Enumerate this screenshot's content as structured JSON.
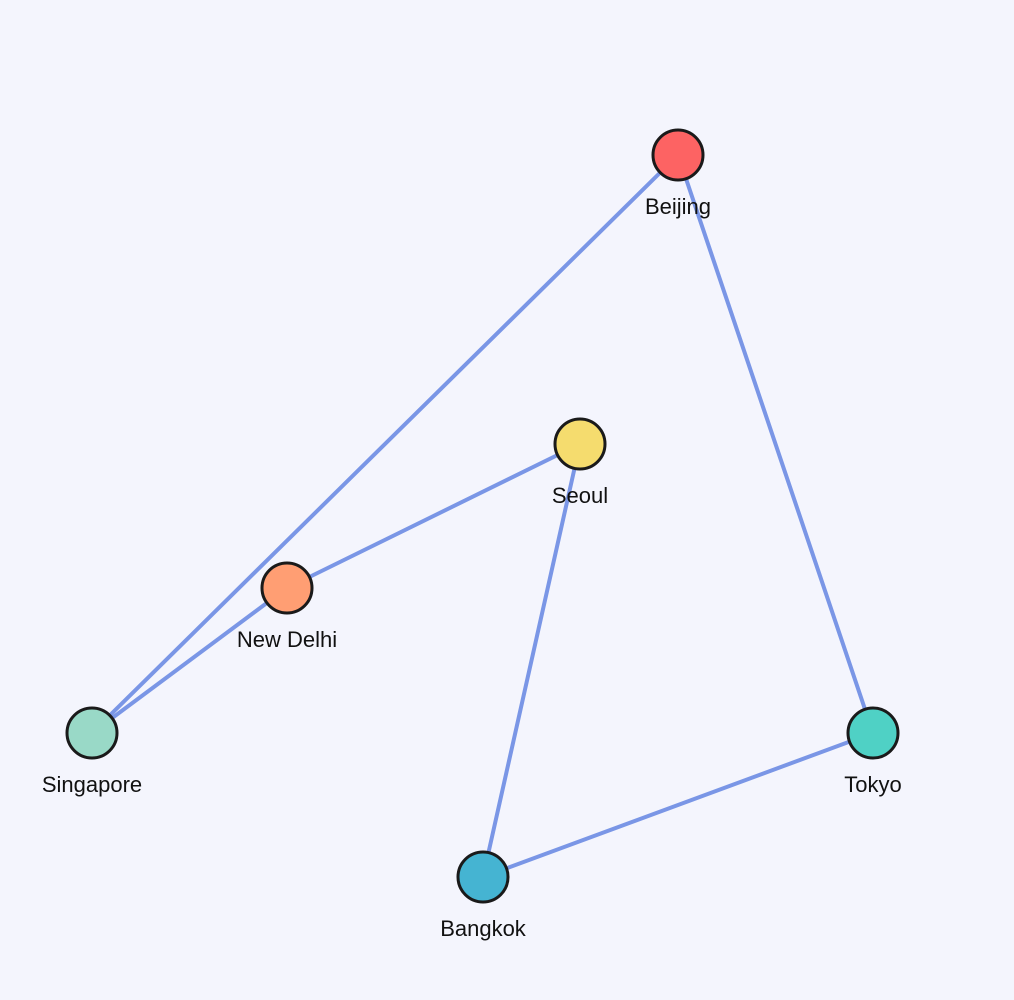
{
  "nodes": [
    {
      "id": "beijing",
      "label": "Beijing",
      "color": "#fd6363"
    },
    {
      "id": "seoul",
      "label": "Seoul",
      "color": "#f5dc6e"
    },
    {
      "id": "new-delhi",
      "label": "New Delhi",
      "color": "#ff9e73"
    },
    {
      "id": "singapore",
      "label": "Singapore",
      "color": "#99d9c7"
    },
    {
      "id": "tokyo",
      "label": "Tokyo",
      "color": "#4fd1c5"
    },
    {
      "id": "bangkok",
      "label": "Bangkok",
      "color": "#45b4d2"
    }
  ],
  "edges": [
    {
      "from": "beijing",
      "to": "singapore"
    },
    {
      "from": "beijing",
      "to": "tokyo"
    },
    {
      "from": "seoul",
      "to": "new-delhi"
    },
    {
      "from": "seoul",
      "to": "bangkok"
    },
    {
      "from": "new-delhi",
      "to": "singapore"
    },
    {
      "from": "tokyo",
      "to": "bangkok"
    }
  ],
  "colors": {
    "background": "#f4f5fd",
    "edge": "#7a96e6",
    "node_stroke": "#1a1a1a"
  }
}
